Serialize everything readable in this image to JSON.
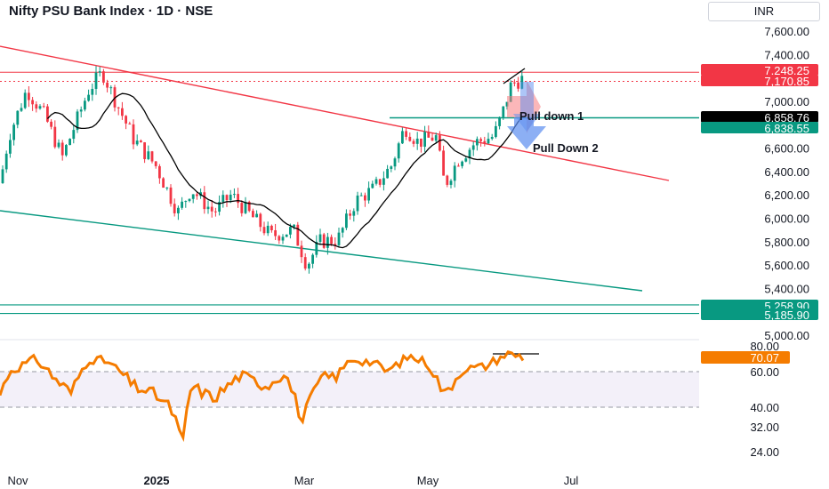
{
  "title": "Nifty PSU Bank Index · 1D · NSE",
  "currency": "INR",
  "chart_data": {
    "type": "candlestick",
    "price_axis": {
      "ticks": [
        "7,600.00",
        "7,400.00",
        "7,200.00",
        "7,000.00",
        "6,800.00",
        "6,600.00",
        "6,400.00",
        "6,200.00",
        "6,000.00",
        "5,800.00",
        "5,600.00",
        "5,400.00",
        "5,200.00",
        "5,000.00"
      ],
      "range": [
        4950,
        7800
      ]
    },
    "rsi_axis": {
      "ticks": [
        "80.00",
        "60.00",
        "40.00",
        "32.00",
        "24.00"
      ],
      "band": [
        40,
        60
      ]
    },
    "time_axis": [
      "Nov",
      "2025",
      "Mar",
      "May",
      "Jul"
    ],
    "price_tags": [
      {
        "label": "7,248.25",
        "color": "#f23645",
        "kind": "fill",
        "value": 7248.25
      },
      {
        "label": "7,170.85",
        "color": "#f23645",
        "kind": "fill",
        "value": 7170.85
      },
      {
        "label": "6,858.76",
        "color": "#000000",
        "kind": "fill",
        "value": 6858.76
      },
      {
        "label": "6,838.55",
        "color": "#089981",
        "kind": "fill",
        "value": 6838.55
      },
      {
        "label": "5,258.90",
        "color": "#089981",
        "kind": "fill",
        "value": 5258.9
      },
      {
        "label": "5,185.90",
        "color": "#089981",
        "kind": "fill",
        "value": 5185.9
      }
    ],
    "rsi_tag": {
      "label": "70.07",
      "color": "#f57c00",
      "value": 70.07
    },
    "annotations": [
      {
        "text": "Pull down 1",
        "value": 6858.76
      },
      {
        "text": "Pull Down 2",
        "value": 6640
      }
    ],
    "colors": {
      "up": "#089981",
      "down": "#f23645",
      "sma": "#000000",
      "rsi": "#f57c00",
      "resistance": "#f23645",
      "support": "#089981"
    }
  }
}
